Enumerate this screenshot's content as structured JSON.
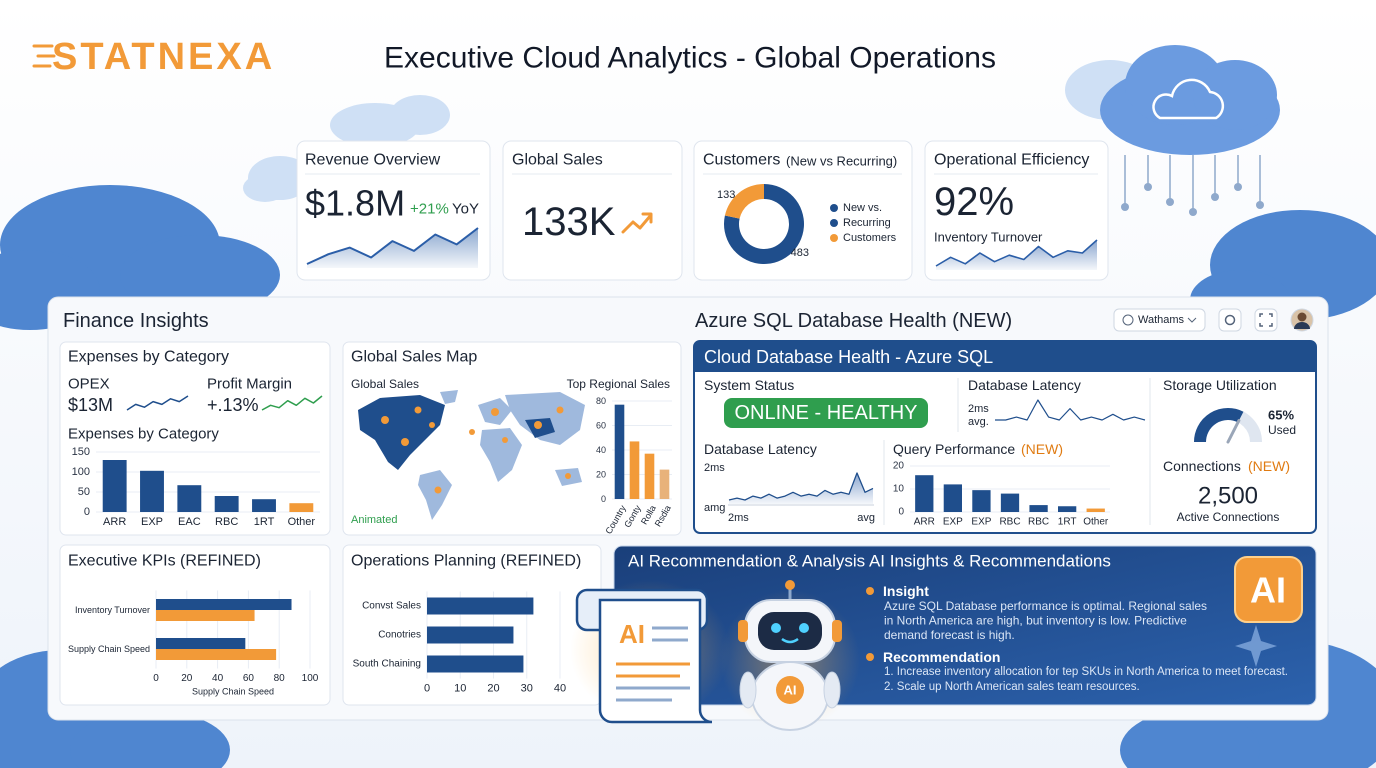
{
  "header": {
    "logo": "STATNEXA",
    "title": "Executive Cloud Analytics - Global Operations"
  },
  "kpi_cards": {
    "revenue": {
      "title": "Revenue Overview",
      "value": "$1.8M",
      "change": "+21%",
      "change_period": "YoY",
      "color": "#2b5ea8",
      "sparkline": [
        12,
        18,
        22,
        16,
        26,
        20,
        30,
        24,
        34
      ]
    },
    "sales": {
      "title": "Global Sales",
      "value": "133K"
    },
    "customers": {
      "title": "Customers",
      "subtitle": "(New vs Recurring)",
      "chart_data": {
        "type": "donut",
        "values": [
          483,
          133
        ],
        "colors": [
          "#1f4e8c",
          "#f29a38"
        ]
      },
      "legend": [
        {
          "label": "New vs.",
          "color": "#1f4e8c"
        },
        {
          "label": "Recurring",
          "color": "#1f4e8c"
        },
        {
          "label": "Customers",
          "color": "#f29a38"
        }
      ]
    },
    "efficiency": {
      "title": "Operational Efficiency",
      "value": "92%",
      "caption": "Inventory Turnover",
      "color": "#2b5ea8",
      "sparkline": [
        8,
        12,
        9,
        14,
        10,
        13,
        11,
        17,
        12,
        15,
        14,
        20
      ]
    }
  },
  "finance": {
    "title": "Finance Insights",
    "expenses_card": {
      "title": "Expenses by Category",
      "opex_label": "OPEX",
      "opex_value": "$13M",
      "opex_sparkline": [
        5,
        7,
        6,
        8,
        7,
        9,
        8,
        10
      ],
      "margin_label": "Profit Margin",
      "margin_value": "+.13%",
      "margin_sparkline": [
        4,
        6,
        5,
        8,
        6,
        9,
        7,
        10
      ],
      "chart_data": {
        "type": "bar",
        "title": "Expenses by Category",
        "categories": [
          "ARR",
          "EXP",
          "EAC",
          "RBC",
          "1RT",
          "Other"
        ],
        "values": [
          130,
          103,
          67,
          40,
          32,
          22
        ],
        "colors": [
          "#1f4e8c",
          "#1f4e8c",
          "#1f4e8c",
          "#1f4e8c",
          "#1f4e8c",
          "#f29a38"
        ],
        "ylim": [
          0,
          150
        ],
        "yticks": [
          0,
          50,
          100,
          150
        ]
      }
    },
    "map_card": {
      "title": "Global Sales Map",
      "map_label": "Global Sales",
      "status": "Animated",
      "chart_data": {
        "type": "bar",
        "title": "Top Regional Sales",
        "categories": [
          "Country",
          "Gonty",
          "Rolla",
          "Rsdia"
        ],
        "values": [
          77,
          47,
          37,
          24
        ],
        "colors": [
          "#1f4e8c",
          "#f29a38",
          "#f29a38",
          "#e8b27a"
        ],
        "ylim": [
          0,
          80
        ],
        "yticks": [
          0,
          20,
          40,
          60,
          80
        ]
      }
    },
    "kpis_card": {
      "title": "Executive KPIs (REFINED)",
      "chart_data": {
        "type": "hbar",
        "categories": [
          "Inventory Turnover",
          "Supply Chain Speed"
        ],
        "series": [
          {
            "color": "#1f4e8c",
            "values": [
              88,
              58
            ]
          },
          {
            "color": "#f29a38",
            "values": [
              64,
              78
            ]
          }
        ],
        "xlim": [
          0,
          100
        ],
        "xticks": [
          0,
          20,
          40,
          60,
          80,
          100
        ],
        "xlabel": "Supply Chain Speed"
      }
    },
    "ops_card": {
      "title": "Operations Planning (REFINED)",
      "chart_data": {
        "type": "hbar",
        "categories": [
          "Convst Sales",
          "Conotries",
          "South Chaining"
        ],
        "series": [
          {
            "color": "#1f4e8c",
            "values": [
              32,
              26,
              29
            ]
          }
        ],
        "xlim": [
          0,
          40
        ],
        "xticks": [
          0,
          10,
          20,
          30,
          40
        ]
      }
    }
  },
  "azure": {
    "title": "Azure SQL Database Health (NEW)",
    "toolbar": {
      "region": "Wathams"
    },
    "panel": {
      "title": "Cloud Database Health - Azure SQL",
      "status": {
        "label": "System Status",
        "value": "ONLINE - HEALTHY"
      },
      "latency_mini": {
        "label": "Database Latency",
        "value": "2ms",
        "caption": "avg.",
        "sparkline": [
          5,
          5,
          6,
          5,
          12,
          6,
          5,
          9,
          5,
          6,
          5,
          7,
          5,
          6,
          5
        ]
      },
      "storage": {
        "label": "Storage Utilization",
        "chart_data": {
          "type": "gauge",
          "value": 65,
          "value_label": "65%",
          "caption": "Used",
          "color": "#1f4e8c"
        }
      },
      "latency_chart": {
        "label": "Database Latency",
        "top_label": "2ms",
        "bottom_label": "amg",
        "x_start": "2ms",
        "x_end": "avg",
        "values": [
          8,
          9,
          8,
          10,
          9,
          11,
          9,
          10,
          12,
          10,
          11,
          10,
          13,
          11,
          12,
          11,
          22,
          12,
          14
        ]
      },
      "query": {
        "label": "Query Performance",
        "badge": "(NEW)",
        "chart_data": {
          "type": "bar",
          "categories": [
            "ARR",
            "EXP",
            "EXP",
            "RBC",
            "RBC",
            "1RT",
            "Other"
          ],
          "values": [
            16,
            12,
            9.5,
            8,
            3,
            2.5,
            1.5
          ],
          "colors": [
            "#1f4e8c",
            "#1f4e8c",
            "#1f4e8c",
            "#1f4e8c",
            "#1f4e8c",
            "#1f4e8c",
            "#f29a38"
          ],
          "ylim": [
            0,
            20
          ],
          "yticks": [
            0,
            10,
            20
          ]
        }
      },
      "connections": {
        "label": "Connections",
        "badge": "(NEW)",
        "value": "2,500",
        "caption": "Active Connections"
      }
    }
  },
  "ai": {
    "title": "AI Recommendation & Analysis AI Insights & Recommendations",
    "doc_badge": "AI",
    "robot_badge": "AI",
    "corner_badge": "AI",
    "insight": {
      "heading": "Insight",
      "lines": [
        "Azure SQL Database performance is optimal. Regional sales",
        "in North America are high, but inventory is low. Predictive",
        "demand forecast is high."
      ]
    },
    "recommendation": {
      "heading": "Recommendation",
      "lines": [
        "1. Increase inventory allocation for tep SKUs in North America to meet forecast.",
        "2. Scale up North American sales team resources."
      ]
    }
  }
}
